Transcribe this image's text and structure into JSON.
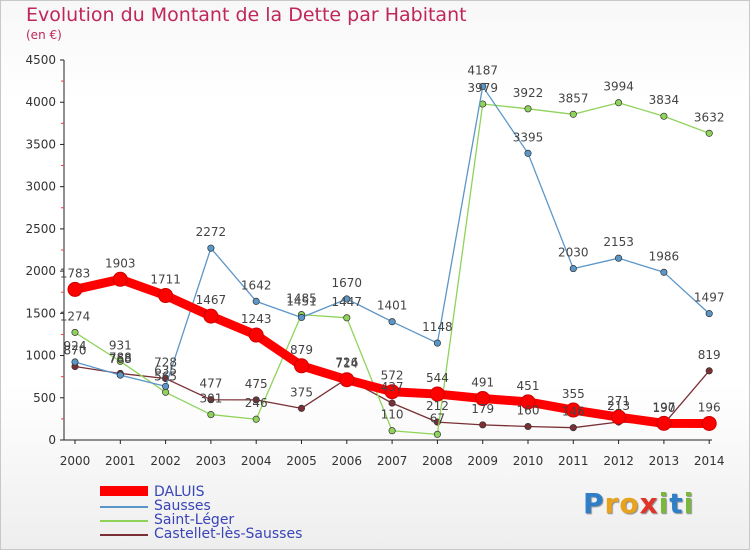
{
  "header": {
    "title": "Evolution du Montant de la Dette par Habitant",
    "subtitle": "(en €)"
  },
  "chart_data": {
    "type": "line",
    "title": "Evolution du Montant de la Dette par Habitant",
    "ylabel": "(en €)",
    "xlabel": "",
    "ylim": [
      0,
      4500
    ],
    "yticks": [
      0,
      500,
      1000,
      1500,
      2000,
      2500,
      3000,
      3500,
      4000,
      4500
    ],
    "grid": false,
    "legend_position": "bottom-left",
    "x": [
      "2000",
      "2001",
      "2002",
      "2003",
      "2004",
      "2005",
      "2006",
      "2007",
      "2008",
      "2009",
      "2010",
      "2011",
      "2012",
      "2013",
      "2014"
    ],
    "series": [
      {
        "name": "DALUIS",
        "color": "#ff0000",
        "values": [
          1783,
          1903,
          1711,
          1467,
          1243,
          879,
          714,
          572,
          544,
          491,
          451,
          355,
          271,
          197,
          196
        ]
      },
      {
        "name": "Sausses",
        "color": "#5b96c8",
        "values": [
          924,
          768,
          635,
          2272,
          1642,
          1451,
          1670,
          1401,
          1148,
          4187,
          3395,
          2030,
          2153,
          1986,
          1497
        ]
      },
      {
        "name": "Saint-Léger",
        "color": "#8fd35a",
        "values": [
          1274,
          931,
          565,
          301,
          246,
          1485,
          1447,
          110,
          67,
          3979,
          3922,
          3857,
          3994,
          3834,
          3632
        ]
      },
      {
        "name": "Castellet-lès-Sausses",
        "color": "#7a2f35",
        "values": [
          870,
          788,
          728,
          477,
          475,
          375,
          726,
          437,
          212,
          179,
          160,
          146,
          213,
          190,
          819
        ]
      }
    ]
  },
  "legend": {
    "items": [
      "DALUIS",
      "Sausses",
      "Saint-Léger",
      "Castellet-lès-Sausses"
    ]
  },
  "logo": {
    "letters": [
      "P",
      "r",
      "o",
      "x",
      "i",
      "t",
      "i"
    ],
    "colors": [
      "#2f7fc8",
      "#e8a21c",
      "#e8a21c",
      "#e0342a",
      "#79b83a",
      "#2f7fc8",
      "#79b83a"
    ]
  }
}
